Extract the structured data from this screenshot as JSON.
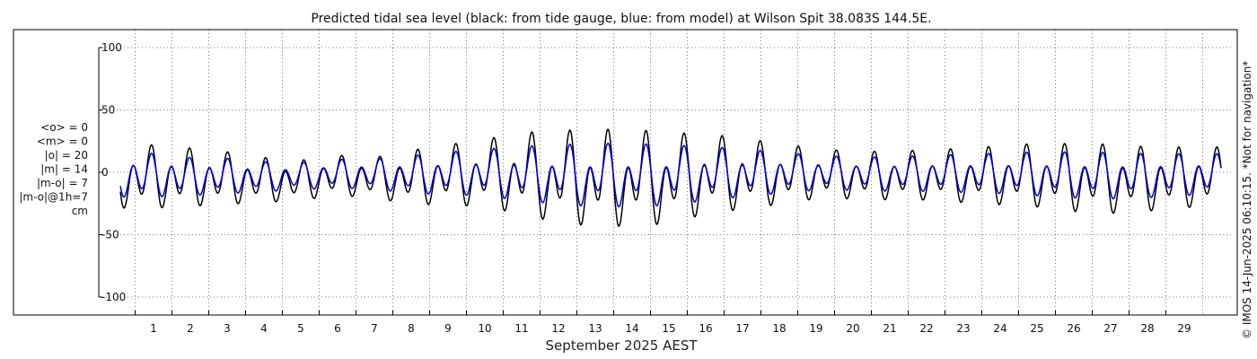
{
  "chart_data": {
    "type": "line",
    "title": "Predicted tidal sea level (black: from tide gauge, blue: from model) at Wilson Spit 38.083S 144.5E.",
    "xlabel": "September 2025 AEST",
    "ylabel": "",
    "ylim": [
      -110,
      110
    ],
    "y_ticks": [
      -100,
      -50,
      0,
      50,
      100
    ],
    "y_tick_labels": [
      "-100",
      "-50",
      "0",
      "50",
      "100"
    ],
    "xlim": [
      0.1,
      30.0
    ],
    "x_ticks": [
      1,
      2,
      3,
      4,
      5,
      6,
      7,
      8,
      9,
      10,
      11,
      12,
      13,
      14,
      15,
      16,
      17,
      18,
      19,
      20,
      21,
      22,
      23,
      24,
      25,
      26,
      27,
      28,
      29
    ],
    "x_tick_labels": [
      "1",
      "2",
      "3",
      "4",
      "5",
      "6",
      "7",
      "8",
      "9",
      "10",
      "11",
      "12",
      "13",
      "14",
      "15",
      "16",
      "17",
      "18",
      "19",
      "20",
      "21",
      "22",
      "23",
      "24",
      "25",
      "26",
      "27",
      "28",
      "29"
    ],
    "grid": true,
    "stats_lines": [
      "<o> = 0",
      "<m> = 0",
      "|o| = 20",
      "|m| = 14",
      "|m-o| = 7",
      "|m-o|@1h=7",
      "cm"
    ],
    "credit": "© IMOS 14-Jun-2025 06:10:15. *Not for navigation*",
    "series": [
      {
        "color": "#000000",
        "day_highs": [
          27,
          24,
          21,
          16,
          14,
          18,
          16,
          22,
          26,
          30,
          35,
          36,
          37,
          37,
          35,
          34,
          31,
          27,
          23,
          21,
          21,
          22,
          23,
          25,
          27,
          27,
          27,
          25,
          25
        ],
        "day_lows": [
          -36,
          -34,
          -32,
          -30,
          -28,
          -24,
          -26,
          -32,
          -32,
          -34,
          -40,
          -47,
          -50,
          -50,
          -48,
          -40,
          -36,
          -32,
          -27,
          -27,
          -28,
          -28,
          -30,
          -32,
          -34,
          -38,
          -40,
          -38,
          -35
        ],
        "secondary_high_rel": [
          0.45,
          0.45,
          0.48,
          0.5,
          0.55,
          0.55,
          0.52,
          0.45,
          0.4,
          0.35,
          0.3,
          0.25,
          0.25,
          0.25,
          0.28,
          0.3,
          0.35,
          0.4,
          0.45,
          0.48,
          0.48,
          0.45,
          0.42,
          0.4,
          0.38,
          0.38,
          0.4,
          0.42,
          0.45
        ]
      },
      {
        "color": "#0000dd",
        "day_highs": [
          20,
          16,
          15,
          12,
          11,
          14,
          14,
          17,
          20,
          22,
          24,
          25,
          26,
          26,
          25,
          24,
          22,
          20,
          17,
          16,
          16,
          17,
          18,
          19,
          20,
          20,
          20,
          19,
          19
        ],
        "day_lows": [
          -26,
          -24,
          -22,
          -20,
          -18,
          -17,
          -18,
          -22,
          -23,
          -24,
          -28,
          -31,
          -33,
          -33,
          -32,
          -28,
          -25,
          -22,
          -19,
          -19,
          -20,
          -20,
          -21,
          -22,
          -24,
          -26,
          -27,
          -26,
          -24
        ],
        "secondary_high_rel": [
          0.55,
          0.55,
          0.55,
          0.58,
          0.6,
          0.6,
          0.58,
          0.52,
          0.48,
          0.42,
          0.38,
          0.34,
          0.32,
          0.32,
          0.35,
          0.38,
          0.42,
          0.48,
          0.52,
          0.55,
          0.55,
          0.52,
          0.5,
          0.48,
          0.46,
          0.46,
          0.48,
          0.5,
          0.52
        ]
      }
    ]
  }
}
